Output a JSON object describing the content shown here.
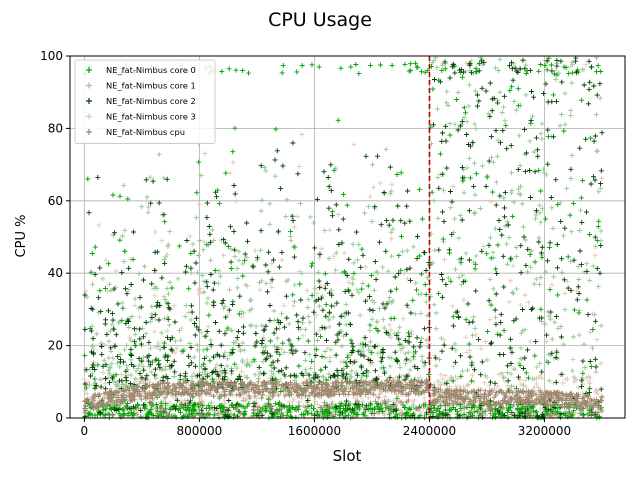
{
  "chart_data": {
    "type": "scatter",
    "title": "CPU Usage",
    "xlabel": "Slot",
    "ylabel": "CPU %",
    "xlim": [
      -100000,
      3760000
    ],
    "ylim": [
      0,
      100
    ],
    "xticks": [
      0,
      800000,
      1600000,
      2400000,
      3200000
    ],
    "xtick_labels": [
      "0",
      "800000",
      "1600000",
      "2400000",
      "3200000"
    ],
    "yticks": [
      0,
      20,
      40,
      60,
      80,
      100
    ],
    "ytick_labels": [
      "0",
      "20",
      "40",
      "60",
      "80",
      "100"
    ],
    "grid": true,
    "legend_position": "top-left",
    "marker": "plus",
    "vline": {
      "x": 2400000,
      "color": "#c00000",
      "style": "dashed"
    },
    "series": [
      {
        "name": "NE_fat-Nimbus core 0",
        "color": "#00a000"
      },
      {
        "name": "NE_fat-Nimbus core 1",
        "color": "#90c890"
      },
      {
        "name": "NE_fat-Nimbus core 2",
        "color": "#004000"
      },
      {
        "name": "NE_fat-Nimbus core 3",
        "color": "#e0c8b8"
      },
      {
        "name": "NE_fat-Nimbus cpu",
        "color": "#a08870"
      }
    ],
    "x_data_max": 3600000,
    "cpu_profile": [
      [
        0,
        6
      ],
      [
        300000,
        8.5
      ],
      [
        600000,
        10
      ],
      [
        1600000,
        10
      ],
      [
        2400000,
        10.5
      ],
      [
        2410000,
        8
      ],
      [
        3200000,
        7.5
      ],
      [
        3600000,
        6
      ]
    ]
  }
}
